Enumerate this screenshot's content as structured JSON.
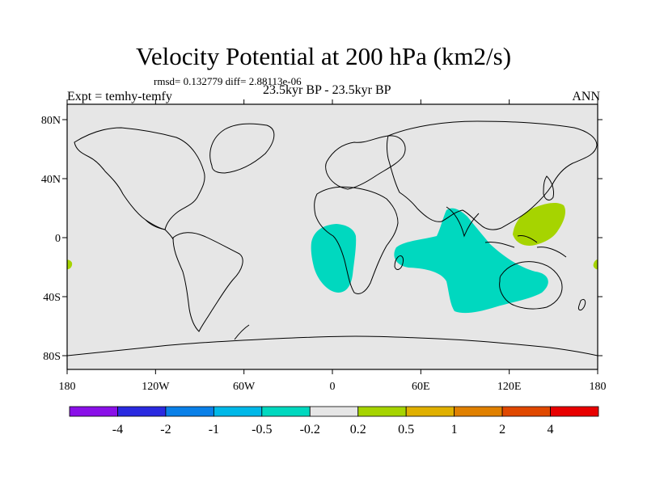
{
  "title": "Velocity Potential at 200 hPa (km2/s)",
  "stats_line": "rmsd= 0.132779 diff= 2.88113e-06",
  "left_label": "Expt = temhy-temfy",
  "center_label": "23.5kyr BP - 23.5kyr BP",
  "right_label": "ANN",
  "map": {
    "background_color": "#e6e6e6",
    "lat_ticks": [
      "80N",
      "40N",
      "0",
      "40S",
      "80S"
    ],
    "lon_ticks": [
      "180",
      "120W",
      "60W",
      "0",
      "60E",
      "120E",
      "180"
    ]
  },
  "regions": [
    {
      "name": "south-atlantic-negative",
      "color": "#00d8bf",
      "category": "-0.5 to -0.2"
    },
    {
      "name": "indian-ocean-negative",
      "color": "#00d8bf",
      "category": "-0.5 to -0.2"
    },
    {
      "name": "west-pacific-positive",
      "color": "#a6d400",
      "category": "0.2 to 0.5"
    },
    {
      "name": "east-edge-positive",
      "color": "#a6d400",
      "category": "0.2 to 0.5"
    },
    {
      "name": "west-edge-positive",
      "color": "#a6d400",
      "category": "0.2 to 0.5"
    }
  ],
  "colorbar": {
    "colors": [
      "#8a10e8",
      "#2a2ae0",
      "#0a80e8",
      "#00b8e8",
      "#00d8bf",
      "#e6e6e6",
      "#a6d400",
      "#e0b000",
      "#e08000",
      "#e04800",
      "#e80000"
    ],
    "labels": [
      "-4",
      "-2",
      "-1",
      "-0.5",
      "-0.2",
      "0.2",
      "0.5",
      "1",
      "2",
      "4"
    ]
  }
}
